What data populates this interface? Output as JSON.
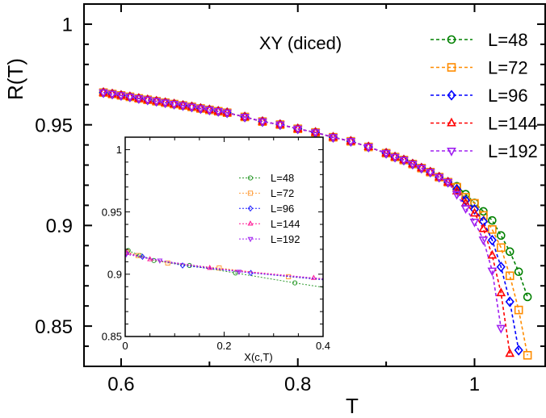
{
  "chart_data": [
    {
      "type": "line",
      "title": "XY (diced)",
      "xlabel": "T",
      "ylabel": "R(T)",
      "xlim": [
        0.558,
        1.08
      ],
      "ylim": [
        0.83,
        1.01
      ],
      "xticks": [
        "0.6",
        "0.8",
        "1"
      ],
      "yticks": [
        "0.85",
        "0.9",
        "0.95",
        "1"
      ],
      "grid": false,
      "legend_position": "top-right",
      "series": [
        {
          "name": "L=48",
          "color": "#008000",
          "marker": "circle",
          "T": [
            0.58,
            0.59,
            0.6,
            0.61,
            0.62,
            0.63,
            0.64,
            0.65,
            0.66,
            0.67,
            0.68,
            0.69,
            0.7,
            0.71,
            0.72,
            0.74,
            0.76,
            0.78,
            0.8,
            0.82,
            0.84,
            0.86,
            0.88,
            0.9,
            0.91,
            0.92,
            0.93,
            0.94,
            0.95,
            0.96,
            0.97,
            0.98,
            0.99,
            1.0,
            1.01,
            1.02,
            1.03,
            1.04,
            1.05,
            1.06
          ],
          "R": [
            0.966,
            0.9653,
            0.9646,
            0.9639,
            0.9631,
            0.9624,
            0.9617,
            0.961,
            0.9603,
            0.9596,
            0.9589,
            0.9581,
            0.9574,
            0.9567,
            0.956,
            0.9539,
            0.9516,
            0.9501,
            0.948,
            0.9462,
            0.9438,
            0.9418,
            0.939,
            0.9359,
            0.934,
            0.9325,
            0.9305,
            0.9285,
            0.9265,
            0.924,
            0.9215,
            0.9195,
            0.9155,
            0.9112,
            0.907,
            0.9025,
            0.895,
            0.887,
            0.877,
            0.8645
          ]
        },
        {
          "name": "L=72",
          "color": "#ff8c00",
          "marker": "square",
          "T": [
            0.58,
            0.59,
            0.6,
            0.61,
            0.62,
            0.63,
            0.64,
            0.65,
            0.66,
            0.67,
            0.68,
            0.69,
            0.7,
            0.71,
            0.72,
            0.74,
            0.76,
            0.78,
            0.8,
            0.82,
            0.84,
            0.86,
            0.88,
            0.9,
            0.91,
            0.92,
            0.93,
            0.94,
            0.95,
            0.96,
            0.97,
            0.98,
            0.99,
            1.0,
            1.01,
            1.02,
            1.03,
            1.04,
            1.05,
            1.06
          ],
          "R": [
            0.966,
            0.9653,
            0.9646,
            0.9639,
            0.9631,
            0.9624,
            0.9617,
            0.961,
            0.9603,
            0.9596,
            0.9589,
            0.9581,
            0.9574,
            0.9567,
            0.956,
            0.9539,
            0.9516,
            0.9501,
            0.948,
            0.9462,
            0.9438,
            0.9418,
            0.939,
            0.9359,
            0.934,
            0.9325,
            0.9305,
            0.9285,
            0.9265,
            0.924,
            0.9215,
            0.919,
            0.914,
            0.911,
            0.905,
            0.898,
            0.889,
            0.875,
            0.858,
            0.8355
          ]
        },
        {
          "name": "L=96",
          "color": "#0000ff",
          "marker": "diamond",
          "T": [
            0.58,
            0.59,
            0.6,
            0.61,
            0.62,
            0.63,
            0.64,
            0.65,
            0.66,
            0.67,
            0.68,
            0.69,
            0.7,
            0.71,
            0.72,
            0.74,
            0.76,
            0.78,
            0.8,
            0.82,
            0.84,
            0.86,
            0.88,
            0.9,
            0.91,
            0.92,
            0.93,
            0.94,
            0.95,
            0.96,
            0.97,
            0.98,
            0.99,
            1.0,
            1.01,
            1.02,
            1.03,
            1.04,
            1.05
          ],
          "R": [
            0.966,
            0.9653,
            0.9646,
            0.9639,
            0.9631,
            0.9624,
            0.9617,
            0.961,
            0.9603,
            0.9596,
            0.9589,
            0.9581,
            0.9574,
            0.9567,
            0.956,
            0.9539,
            0.9516,
            0.9501,
            0.948,
            0.9462,
            0.9438,
            0.9418,
            0.939,
            0.9359,
            0.934,
            0.9325,
            0.9305,
            0.9285,
            0.9265,
            0.924,
            0.9215,
            0.918,
            0.9125,
            0.908,
            0.902,
            0.8927,
            0.8794,
            0.8621,
            0.838
          ]
        },
        {
          "name": "L=144",
          "color": "#ff0000",
          "marker": "triangle-up",
          "T": [
            0.58,
            0.59,
            0.6,
            0.61,
            0.62,
            0.63,
            0.64,
            0.65,
            0.66,
            0.67,
            0.68,
            0.69,
            0.7,
            0.71,
            0.72,
            0.74,
            0.76,
            0.78,
            0.8,
            0.82,
            0.84,
            0.86,
            0.88,
            0.9,
            0.91,
            0.92,
            0.93,
            0.94,
            0.95,
            0.96,
            0.97,
            0.98,
            0.99,
            1.0,
            1.01,
            1.02,
            1.03,
            1.04
          ],
          "R": [
            0.966,
            0.9653,
            0.9646,
            0.9639,
            0.9631,
            0.9624,
            0.9617,
            0.961,
            0.9603,
            0.9596,
            0.9589,
            0.9581,
            0.9574,
            0.9567,
            0.956,
            0.9539,
            0.9516,
            0.9501,
            0.948,
            0.9462,
            0.9438,
            0.9418,
            0.939,
            0.9359,
            0.934,
            0.9325,
            0.9305,
            0.9285,
            0.9265,
            0.924,
            0.9215,
            0.917,
            0.911,
            0.906,
            0.8983,
            0.8851,
            0.8664,
            0.8363
          ]
        },
        {
          "name": "L=192",
          "color": "#a020f0",
          "marker": "triangle-down",
          "T": [
            0.58,
            0.59,
            0.6,
            0.61,
            0.62,
            0.63,
            0.64,
            0.65,
            0.66,
            0.67,
            0.68,
            0.69,
            0.7,
            0.71,
            0.72,
            0.74,
            0.76,
            0.78,
            0.8,
            0.82,
            0.84,
            0.86,
            0.88,
            0.9,
            0.91,
            0.92,
            0.93,
            0.94,
            0.95,
            0.96,
            0.97,
            0.98,
            0.99,
            1.0,
            1.01,
            1.02,
            1.03
          ],
          "R": [
            0.966,
            0.9653,
            0.9646,
            0.9639,
            0.9631,
            0.9624,
            0.9617,
            0.961,
            0.9603,
            0.9596,
            0.9589,
            0.9581,
            0.9574,
            0.9567,
            0.956,
            0.9539,
            0.9516,
            0.9501,
            0.948,
            0.9462,
            0.9438,
            0.9418,
            0.939,
            0.9359,
            0.934,
            0.9325,
            0.9305,
            0.9285,
            0.9265,
            0.924,
            0.9215,
            0.9155,
            0.9085,
            0.9018,
            0.8929,
            0.8775,
            0.849
          ]
        }
      ]
    },
    {
      "type": "line",
      "xlabel": "X(c,T)",
      "ylabel": "",
      "xlim": [
        0,
        0.4
      ],
      "ylim": [
        0.85,
        1.01
      ],
      "xticks": [
        "0",
        "0.2",
        "0.4"
      ],
      "yticks": [
        "0.85",
        "0.9",
        "0.95",
        "1"
      ],
      "grid": false,
      "legend_position": "top-right",
      "series": [
        {
          "name": "L=48",
          "color": "#2e9b2e",
          "marker": "circle",
          "X": [
            0.006,
            0.03,
            0.058,
            0.13,
            0.223,
            0.343,
            0.4
          ],
          "R": [
            0.919,
            0.915,
            0.911,
            0.907,
            0.901,
            0.893,
            0.8895
          ]
        },
        {
          "name": "L=72",
          "color": "#ffa040",
          "marker": "square",
          "X": [
            0.003,
            0.026,
            0.086,
            0.19,
            0.33,
            0.4
          ],
          "R": [
            0.918,
            0.915,
            0.909,
            0.905,
            0.898,
            0.8957
          ]
        },
        {
          "name": "L=96",
          "color": "#2020ff",
          "marker": "diamond",
          "X": [
            0.003,
            0.035,
            0.116,
            0.254,
            0.4
          ],
          "R": [
            0.917,
            0.914,
            0.907,
            0.901,
            0.8955
          ]
        },
        {
          "name": "L=144",
          "color": "#ff1493",
          "marker": "triangle-up",
          "X": [
            0.003,
            0.05,
            0.171,
            0.381,
            0.4
          ],
          "R": [
            0.917,
            0.912,
            0.905,
            0.897,
            0.8965
          ]
        },
        {
          "name": "L=192",
          "color": "#a020f0",
          "marker": "triangle-down",
          "X": [
            0.002,
            0.07,
            0.23,
            0.4
          ],
          "R": [
            0.916,
            0.911,
            0.902,
            0.8962
          ]
        }
      ]
    }
  ]
}
